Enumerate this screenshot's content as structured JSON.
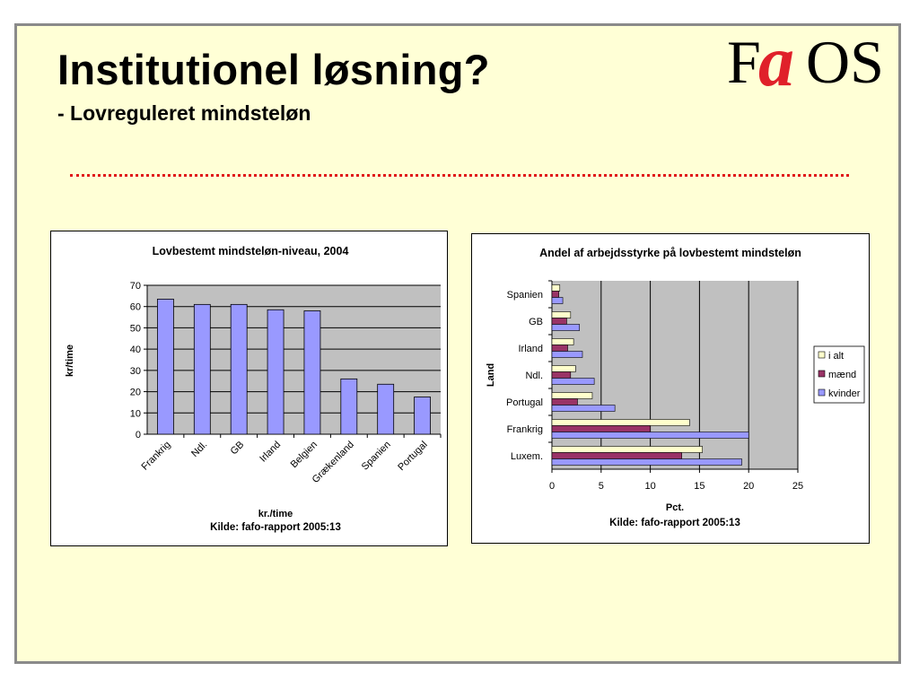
{
  "slide": {
    "title": "Institutionel løsning?",
    "subtitle": "- Lovreguleret mindsteløn",
    "logo": {
      "f": "F",
      "a": "a",
      "os": "OS",
      "colors": {
        "text": "#000000",
        "accent": "#e0202a"
      }
    },
    "divider_color": "#e01818",
    "background": "#ffffd6"
  },
  "chart_data": [
    {
      "type": "bar",
      "title": "Lovbestemt mindsteløn-niveau, 2004",
      "categories": [
        "Frankrig",
        "Ndl.",
        "GB",
        "Irland",
        "Belgien",
        "Grækenland",
        "Spanien",
        "Portugal"
      ],
      "values": [
        63.5,
        61,
        61,
        58.5,
        58,
        26,
        23.5,
        17.5
      ],
      "ylabel": "kr/time",
      "xlabel": "kr./time",
      "source": "Kilde: fafo-rapport 2005:13",
      "ylim": [
        0,
        70
      ],
      "yticks": [
        0,
        10,
        20,
        30,
        40,
        50,
        60,
        70
      ],
      "grid": true,
      "colors": {
        "bar": "#9999ff",
        "plot_bg": "#c0c0c0"
      }
    },
    {
      "type": "bar",
      "orientation": "horizontal",
      "title": "Andel af arbejdsstyrke på lovbestemt mindsteløn",
      "categories": [
        "Spanien",
        "GB",
        "Irland",
        "Ndl.",
        "Portugal",
        "Frankrig",
        "Luxem."
      ],
      "series": [
        {
          "name": "i alt",
          "values": [
            0.8,
            1.9,
            2.2,
            2.4,
            4.1,
            14,
            15.3
          ],
          "color": "#ffffcc"
        },
        {
          "name": "mænd",
          "values": [
            0.7,
            1.5,
            1.6,
            1.9,
            2.6,
            10,
            13.2
          ],
          "color": "#993366"
        },
        {
          "name": "kvinder",
          "values": [
            1.1,
            2.8,
            3.1,
            4.3,
            6.4,
            20,
            19.3
          ],
          "color": "#9999ff"
        }
      ],
      "ylabel": "Land",
      "xlabel": "Pct.",
      "source": "Kilde: fafo-rapport 2005:13",
      "xlim": [
        0,
        25
      ],
      "xticks": [
        0,
        5,
        10,
        15,
        20,
        25
      ],
      "grid": true,
      "legend": "right",
      "colors": {
        "plot_bg": "#c0c0c0"
      }
    }
  ]
}
